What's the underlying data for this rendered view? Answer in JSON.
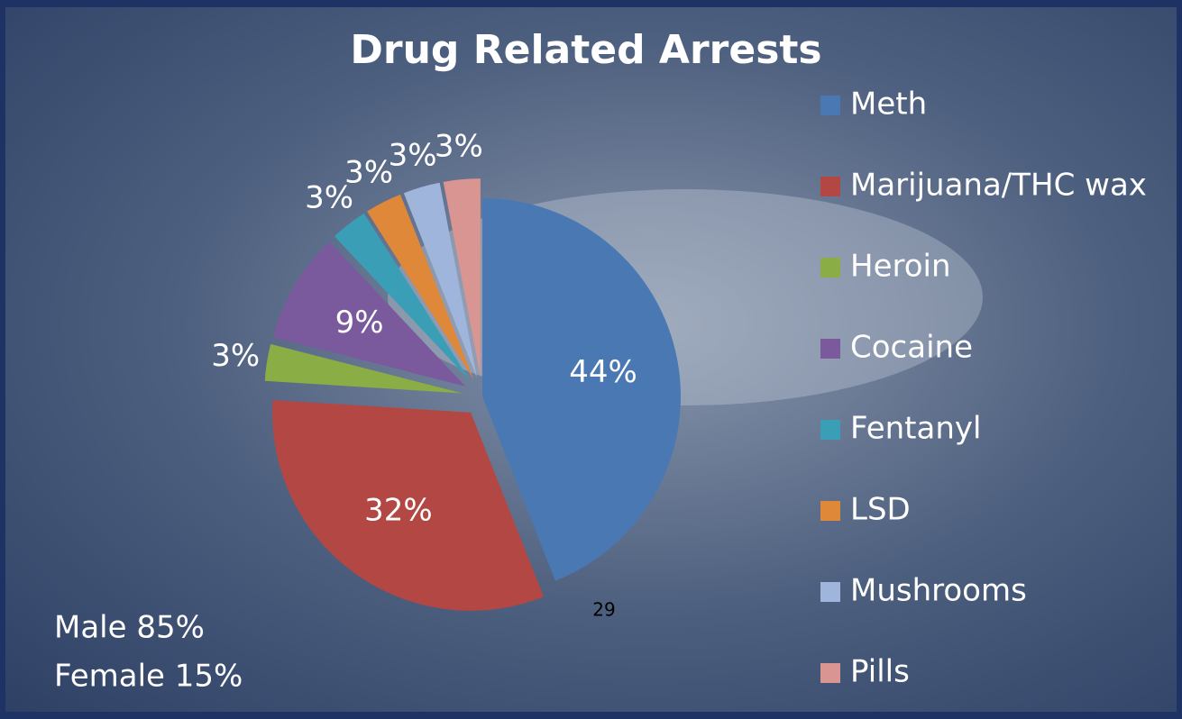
{
  "chart_data": {
    "type": "pie",
    "title": "Drug Related Arrests",
    "categories": [
      "Meth",
      "Marijuana/THC wax",
      "Heroin",
      "Cocaine",
      "Fentanyl",
      "LSD",
      "Mushrooms",
      "Pills"
    ],
    "values": [
      44,
      32,
      3,
      9,
      3,
      3,
      3,
      3
    ],
    "value_labels": [
      "44%",
      "32%",
      "3%",
      "9%",
      "3%",
      "3%",
      "3%",
      "3%"
    ],
    "colors": [
      "#4a78b3",
      "#b34744",
      "#8aad45",
      "#7a5a9c",
      "#3a9fb6",
      "#e0883a",
      "#a0b5dc",
      "#d99591"
    ],
    "legend": "right",
    "annotations": [
      "Male 85%",
      "Female 15%"
    ]
  },
  "slide": {
    "page_number": "29"
  }
}
